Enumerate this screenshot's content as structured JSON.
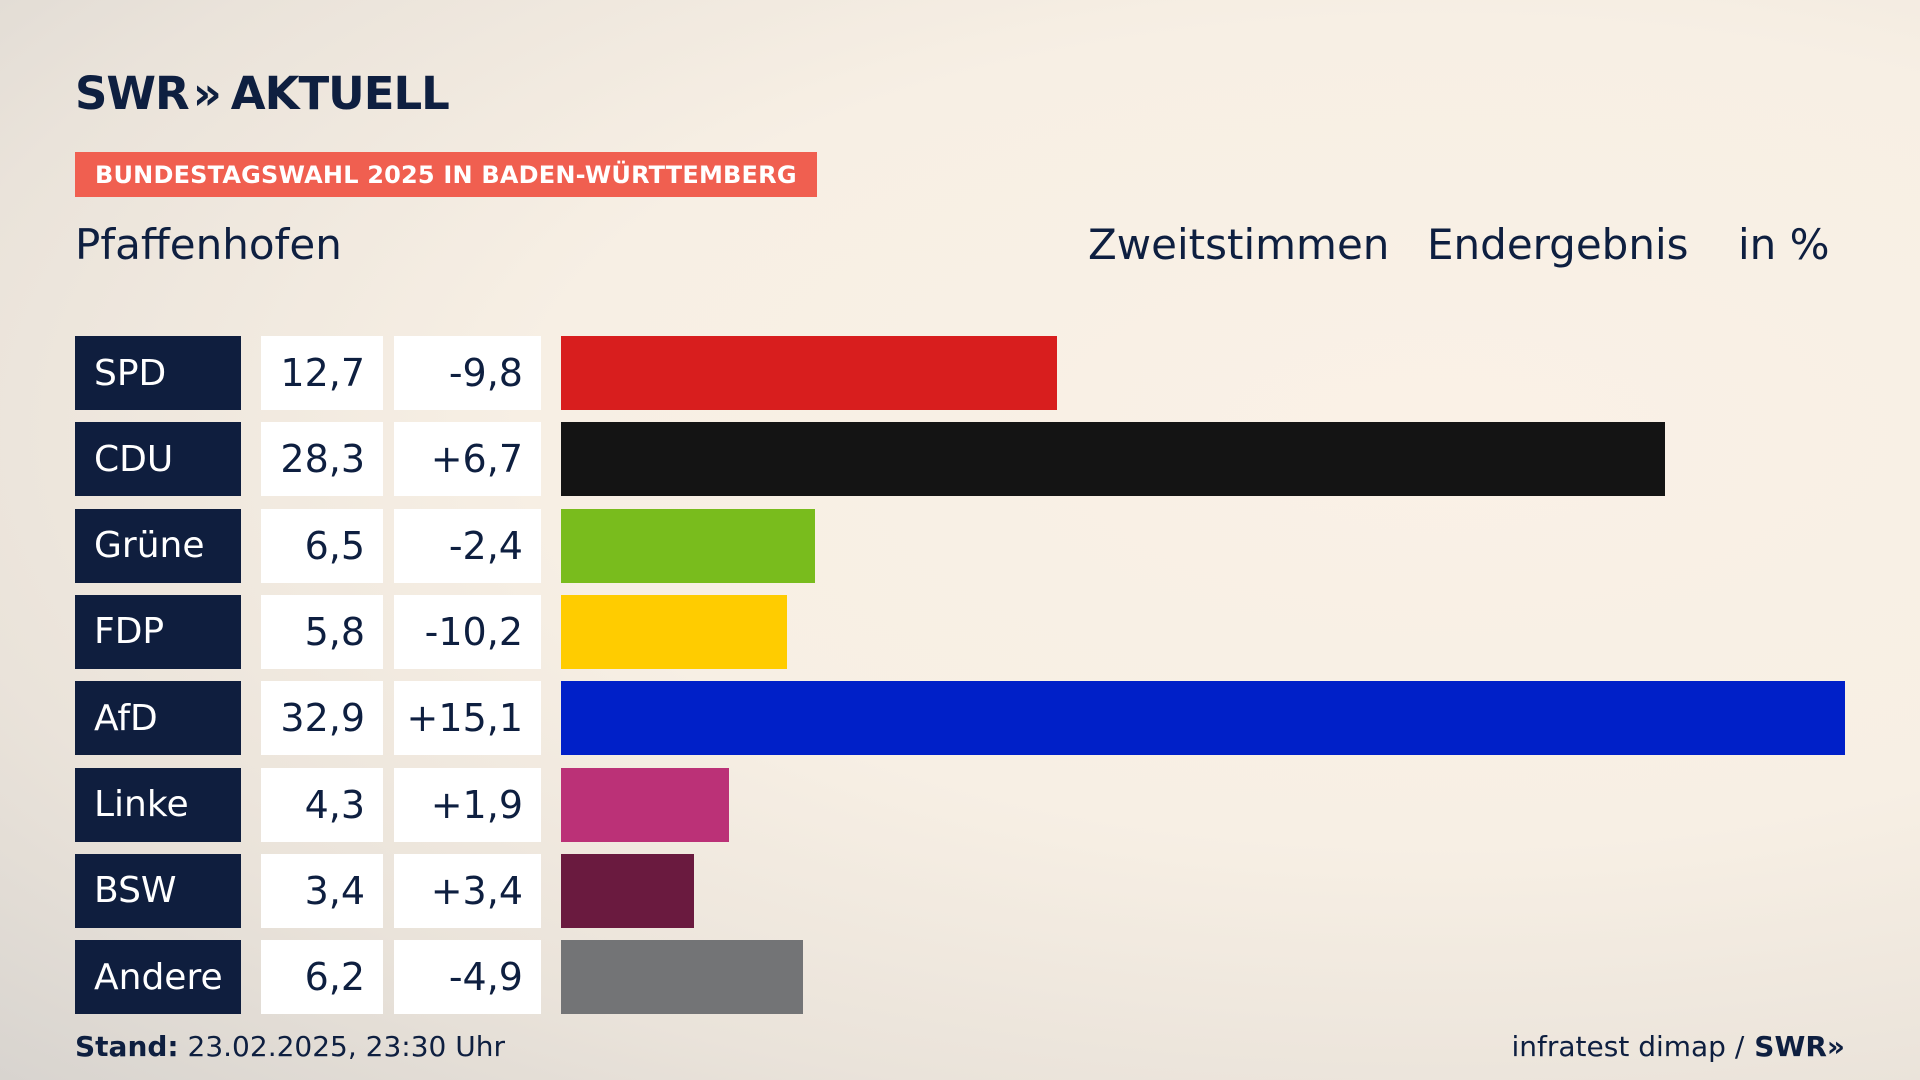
{
  "brand": {
    "swr": "SWR",
    "chevrons": "»",
    "aktuell": "AKTUELL"
  },
  "banner": "BUNDESTAGSWAHL 2025 IN BADEN-WÜRTTEMBERG",
  "place": "Pfaffenhofen",
  "header": {
    "votes": "Zweitstimmen",
    "result": "Endergebnis",
    "unit": "in %"
  },
  "chart_data": {
    "type": "bar",
    "title": "Zweitstimmen Endergebnis in %",
    "categories": [
      "SPD",
      "CDU",
      "Grüne",
      "FDP",
      "AfD",
      "Linke",
      "BSW",
      "Andere"
    ],
    "values": [
      12.7,
      28.3,
      6.5,
      5.8,
      32.9,
      4.3,
      3.4,
      6.2
    ],
    "value_labels": [
      "12,7",
      "28,3",
      "6,5",
      "5,8",
      "32,9",
      "4,3",
      "3,4",
      "6,2"
    ],
    "diff_labels": [
      "-9,8",
      "+6,7",
      "-2,4",
      "-10,2",
      "+15,1",
      "+1,9",
      "+3,4",
      "-4,9"
    ],
    "colors": [
      "#d81e1e",
      "#141414",
      "#79bc1d",
      "#ffcc00",
      "#0020c8",
      "#bb3177",
      "#6a1a3f",
      "#737476"
    ],
    "xlim": [
      0,
      32.9
    ]
  },
  "footer": {
    "stand_label": "Stand:",
    "stand_value": "23.02.2025, 23:30 Uhr",
    "source": "infratest dimap /",
    "source_brand": "SWR»"
  }
}
